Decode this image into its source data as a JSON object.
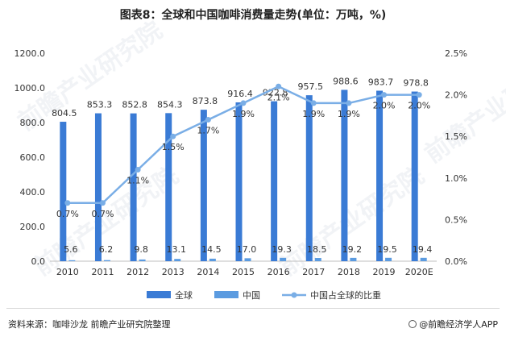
{
  "title": "图表8：全球和中国咖啡消费量走势(单位：万吨，%)",
  "source": "资料来源：咖啡沙龙 前瞻产业研究院整理",
  "brand": "@前瞻经济学人APP",
  "watermark": "前瞻产业研究院",
  "colors": {
    "global": "#3a7bd5",
    "china": "#5b9be0",
    "share": "#7aaee6",
    "axis": "#bfbfbf",
    "text": "#333333"
  },
  "chart_data": {
    "type": "bar",
    "categories": [
      "2010",
      "2011",
      "2012",
      "2013",
      "2014",
      "2015",
      "2016",
      "2017",
      "2018",
      "2019",
      "2020E"
    ],
    "series": [
      {
        "name": "全球",
        "type": "bar",
        "axis": "left",
        "values": [
          804.5,
          853.3,
          852.8,
          854.3,
          873.8,
          916.4,
          922.8,
          957.5,
          988.6,
          983.7,
          978.8
        ],
        "labels": [
          "804.5",
          "853.3",
          "852.8",
          "854.3",
          "873.8",
          "916.4",
          "922.8",
          "957.5",
          "988.6",
          "983.7",
          "978.8"
        ]
      },
      {
        "name": "中国",
        "type": "bar",
        "axis": "left",
        "values": [
          5.6,
          6.2,
          9.8,
          13.1,
          14.5,
          17.0,
          19.3,
          18.5,
          19.2,
          19.5,
          19.4
        ],
        "labels": [
          "5.6",
          "6.2",
          "9.8",
          "13.1",
          "14.5",
          "17.0",
          "19.3",
          "18.5",
          "19.2",
          "19.5",
          "19.4"
        ]
      },
      {
        "name": "中国占全球的比重",
        "type": "line",
        "axis": "right",
        "values": [
          0.7,
          0.7,
          1.1,
          1.5,
          1.7,
          1.9,
          2.1,
          1.9,
          1.9,
          2.0,
          2.0
        ],
        "labels": [
          "0.7%",
          "0.7%",
          "1.1%",
          "1.5%",
          "1.7%",
          "1.9%",
          "2.1%",
          "1.9%",
          "1.9%",
          "2.0%",
          "2.0%"
        ]
      }
    ],
    "left_axis": {
      "min": 0,
      "max": 1200,
      "step": 200,
      "ticks": [
        "0.0",
        "200.0",
        "400.0",
        "600.0",
        "800.0",
        "1000.0",
        "1200.0"
      ]
    },
    "right_axis": {
      "min": 0,
      "max": 2.5,
      "step": 0.5,
      "ticks": [
        "0.0%",
        "0.5%",
        "1.0%",
        "1.5%",
        "2.0%",
        "2.5%"
      ]
    },
    "legend_position": "bottom"
  }
}
